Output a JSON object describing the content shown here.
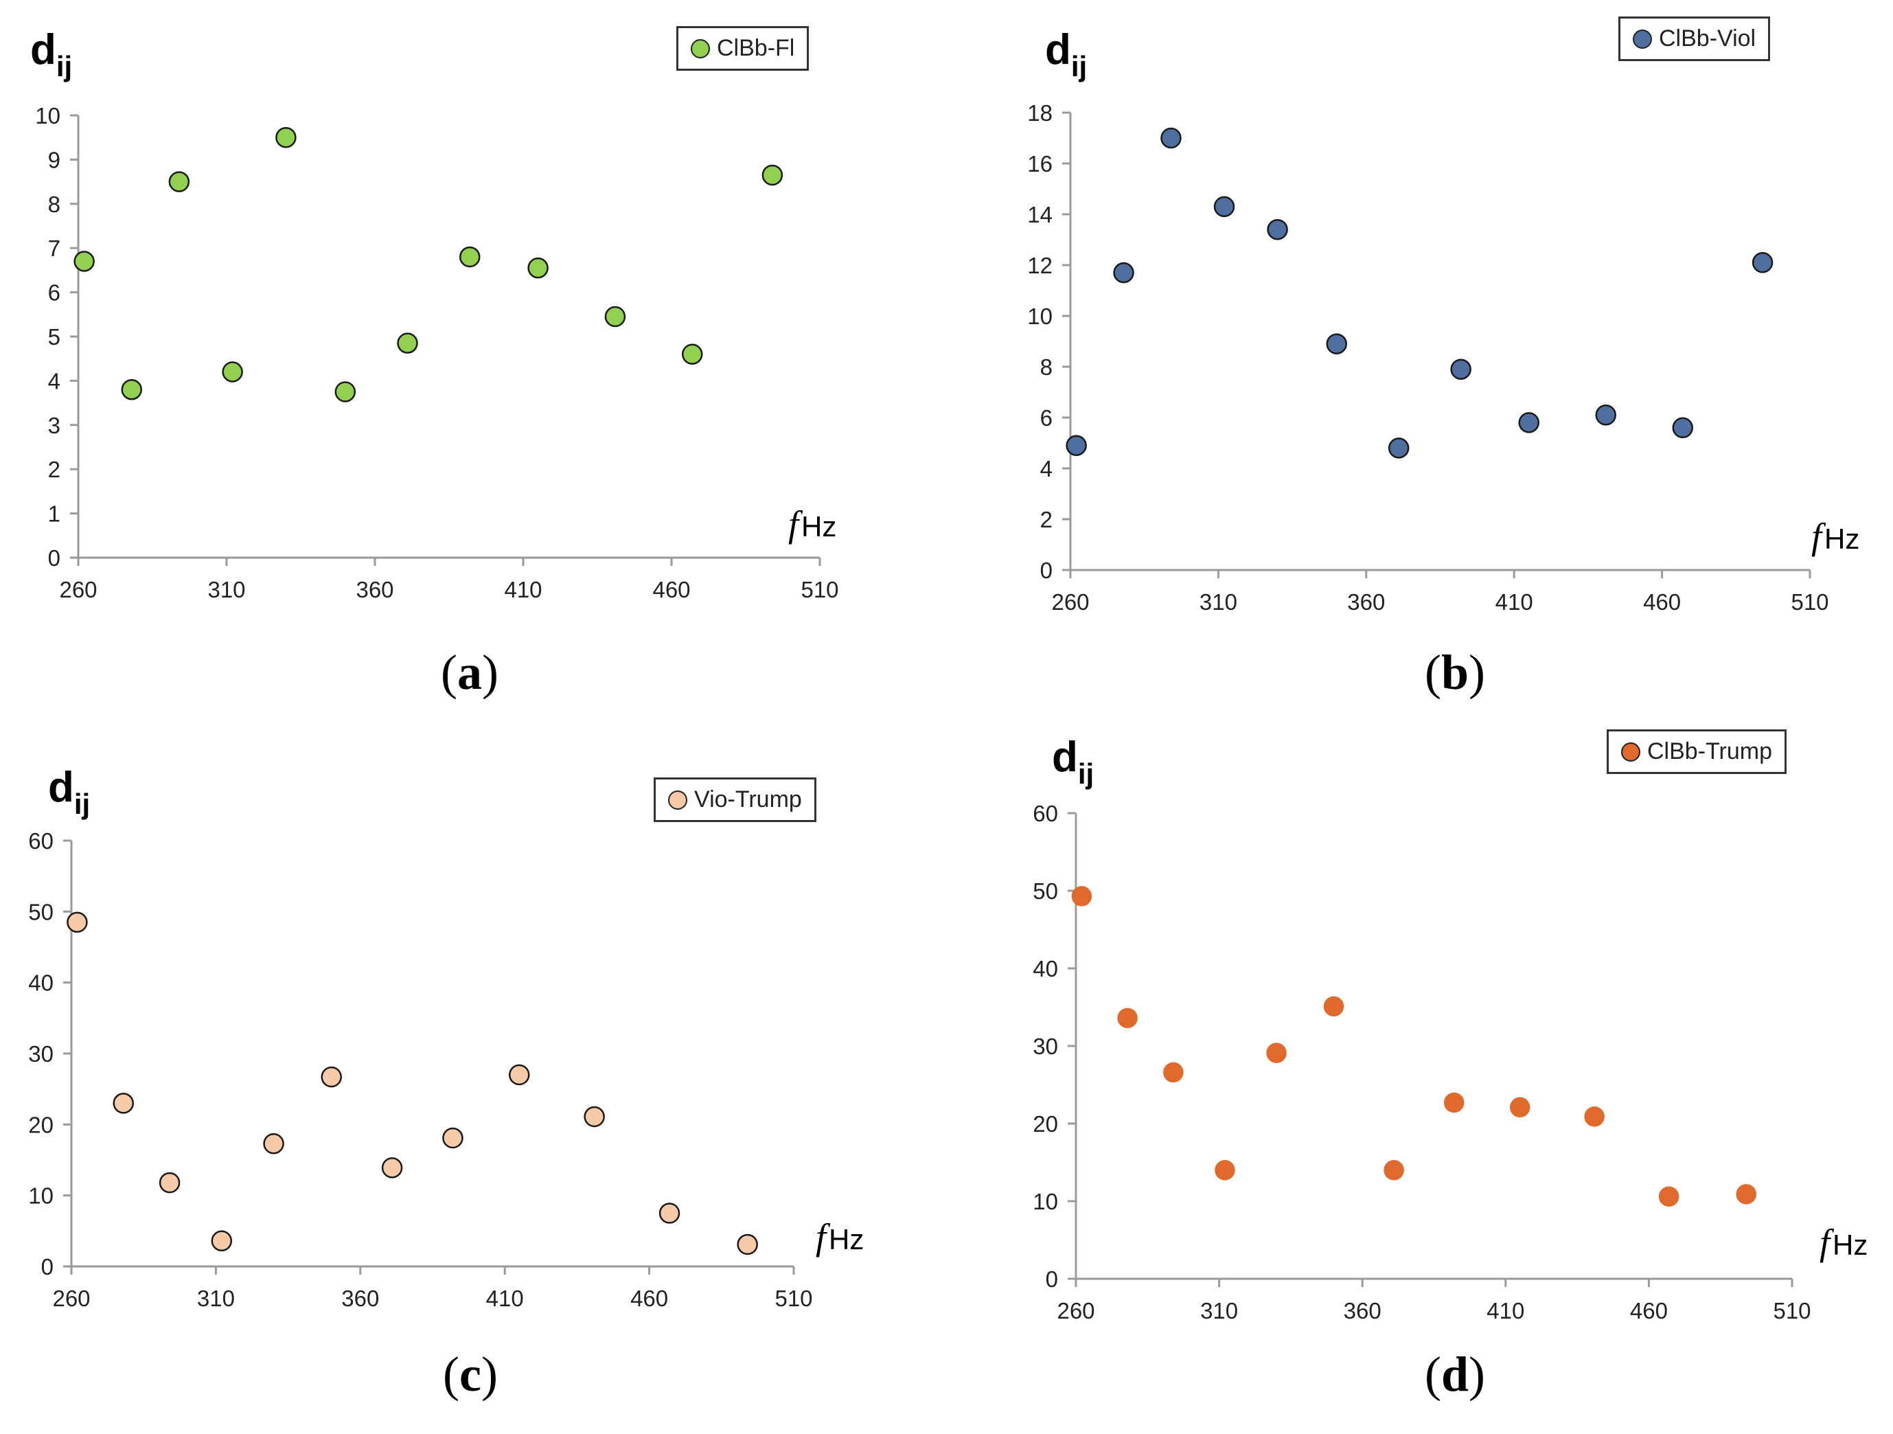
{
  "common": {
    "ylabel_main": "d",
    "ylabel_sub": "ij",
    "xlabel_f": "f",
    "xlabel_unit": "Hz"
  },
  "chart_data": [
    {
      "id": "a",
      "type": "scatter",
      "caption": "a",
      "legend": "ClBb-Fl",
      "color": "#92d050",
      "xlim": [
        260,
        510
      ],
      "xticks": [
        260,
        310,
        360,
        410,
        460,
        510
      ],
      "ylim": [
        0,
        10
      ],
      "yticks": [
        0,
        1,
        2,
        3,
        4,
        5,
        6,
        7,
        8,
        9,
        10
      ],
      "x": [
        262,
        278,
        294,
        312,
        330,
        350,
        371,
        392,
        415,
        441,
        467,
        494
      ],
      "y": [
        6.7,
        3.8,
        8.5,
        4.2,
        9.5,
        3.75,
        4.85,
        6.8,
        6.55,
        5.45,
        4.6,
        8.65
      ]
    },
    {
      "id": "b",
      "type": "scatter",
      "caption": "b",
      "legend": "ClBb-Viol",
      "color": "#4f6fa0",
      "xlim": [
        260,
        510
      ],
      "xticks": [
        260,
        310,
        360,
        410,
        460,
        510
      ],
      "ylim": [
        0,
        18
      ],
      "yticks": [
        0,
        2,
        4,
        6,
        8,
        10,
        12,
        14,
        16,
        18
      ],
      "x": [
        262,
        278,
        294,
        312,
        330,
        350,
        371,
        392,
        415,
        441,
        467,
        494
      ],
      "y": [
        4.9,
        11.7,
        17.0,
        14.3,
        13.4,
        8.9,
        4.8,
        7.9,
        5.8,
        6.1,
        5.6,
        12.1
      ]
    },
    {
      "id": "c",
      "type": "scatter",
      "caption": "c",
      "legend": "Vio-Trump",
      "color": "#f6c9a7",
      "xlim": [
        260,
        510
      ],
      "xticks": [
        260,
        310,
        360,
        410,
        460,
        510
      ],
      "ylim": [
        0,
        60
      ],
      "yticks": [
        0,
        10,
        20,
        30,
        40,
        50,
        60
      ],
      "x": [
        262,
        278,
        294,
        312,
        330,
        350,
        371,
        392,
        415,
        441,
        467,
        494
      ],
      "y": [
        48.5,
        23.0,
        11.8,
        3.6,
        17.3,
        26.7,
        13.9,
        18.1,
        27.0,
        21.1,
        7.5,
        3.1
      ]
    },
    {
      "id": "d",
      "type": "scatter",
      "caption": "d",
      "legend": "ClBb-Trump",
      "color": "#e06a2c",
      "xlim": [
        260,
        510
      ],
      "xticks": [
        260,
        310,
        360,
        410,
        460,
        510
      ],
      "ylim": [
        0,
        60
      ],
      "yticks": [
        0,
        10,
        20,
        30,
        40,
        50,
        60
      ],
      "x": [
        262,
        278,
        294,
        312,
        330,
        350,
        371,
        392,
        415,
        441,
        467,
        494
      ],
      "y": [
        49.3,
        33.6,
        26.6,
        14.0,
        29.1,
        35.1,
        14.0,
        22.7,
        22.1,
        20.9,
        10.6,
        10.9
      ]
    }
  ]
}
